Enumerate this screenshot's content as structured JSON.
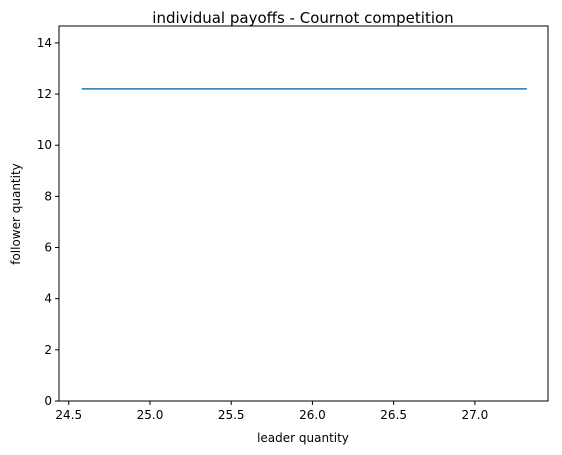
{
  "chart_data": {
    "type": "line",
    "title": "individual payoffs - Cournot competition",
    "xlabel": "leader quantity",
    "ylabel": "follower quantity",
    "xlim": [
      24.44,
      27.45
    ],
    "ylim": [
      0,
      14.66
    ],
    "xticks": [
      {
        "value": 24.5,
        "label": "24.5"
      },
      {
        "value": 25.0,
        "label": "25.0"
      },
      {
        "value": 25.5,
        "label": "25.5"
      },
      {
        "value": 26.0,
        "label": "26.0"
      },
      {
        "value": 26.5,
        "label": "26.5"
      },
      {
        "value": 27.0,
        "label": "27.0"
      }
    ],
    "yticks": [
      {
        "value": 0,
        "label": "0"
      },
      {
        "value": 2,
        "label": "2"
      },
      {
        "value": 4,
        "label": "4"
      },
      {
        "value": 6,
        "label": "6"
      },
      {
        "value": 8,
        "label": "8"
      },
      {
        "value": 10,
        "label": "10"
      },
      {
        "value": 12,
        "label": "12"
      },
      {
        "value": 14,
        "label": "14"
      }
    ],
    "grid": false,
    "series": [
      {
        "color": "#1f77b4",
        "x": [
          24.58,
          27.32
        ],
        "y": [
          12.2,
          12.2
        ]
      }
    ]
  }
}
